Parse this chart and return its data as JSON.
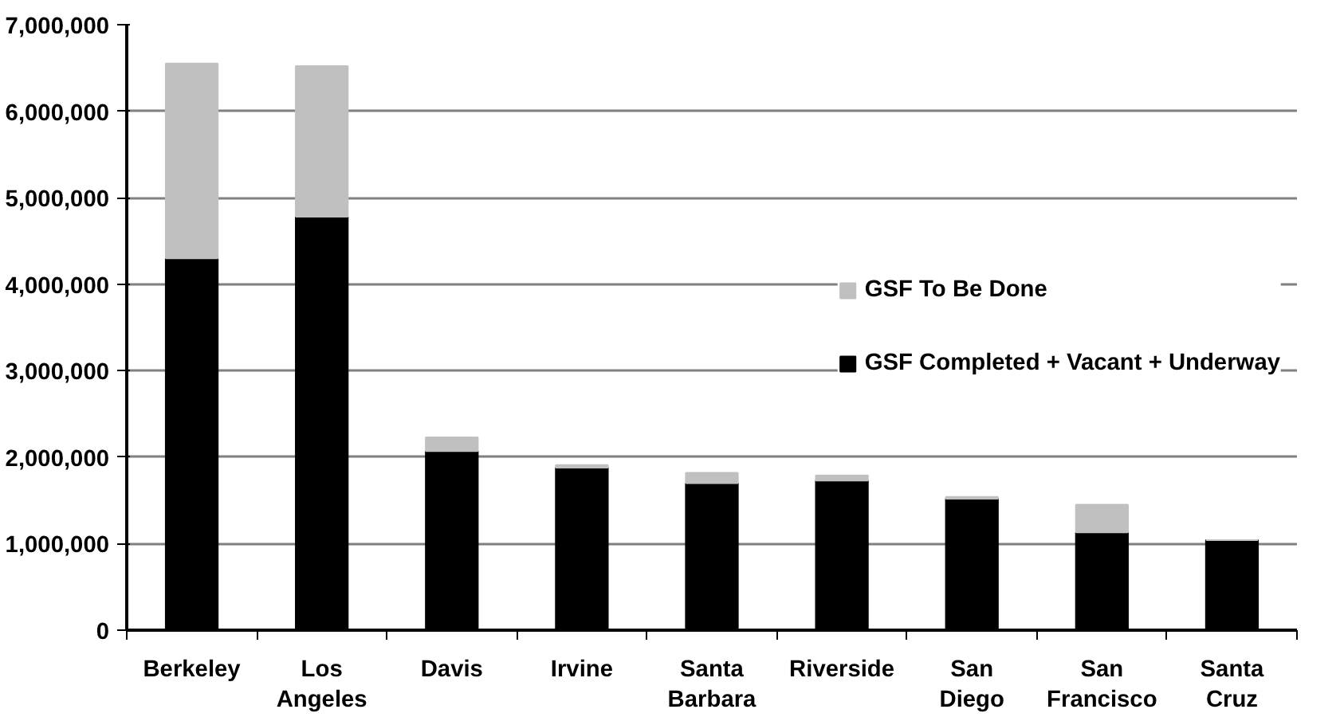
{
  "chart_data": {
    "type": "bar",
    "stacked": true,
    "categories": [
      "Berkeley",
      "Los Angeles",
      "Davis",
      "Irvine",
      "Santa Barbara",
      "Riverside",
      "San Diego",
      "San Francisco",
      "Santa Cruz"
    ],
    "series": [
      {
        "name": "GSF Completed + Vacant + Underway",
        "color": "#000000",
        "values": [
          4300000,
          4780000,
          2070000,
          1880000,
          1700000,
          1730000,
          1520000,
          1130000,
          1040000
        ]
      },
      {
        "name": "GSF To Be Done",
        "color": "#c0c0c0",
        "values": [
          2250000,
          1740000,
          160000,
          30000,
          120000,
          60000,
          20000,
          320000,
          0
        ]
      }
    ],
    "ylim": [
      0,
      7000000
    ],
    "yticks": [
      0,
      {
        "value": 1000000,
        "label": "1,000,000"
      },
      {
        "value": 2000000,
        "label": "2,000,000"
      },
      {
        "value": 3000000,
        "label": "3,000,000"
      },
      {
        "value": 4000000,
        "label": "4,000,000"
      },
      {
        "value": 5000000,
        "label": "5,000,000"
      },
      {
        "value": 6000000,
        "label": "6,000,000"
      },
      {
        "value": 7000000,
        "label": "7,000,000"
      }
    ],
    "grid": "y",
    "legend": "right"
  }
}
